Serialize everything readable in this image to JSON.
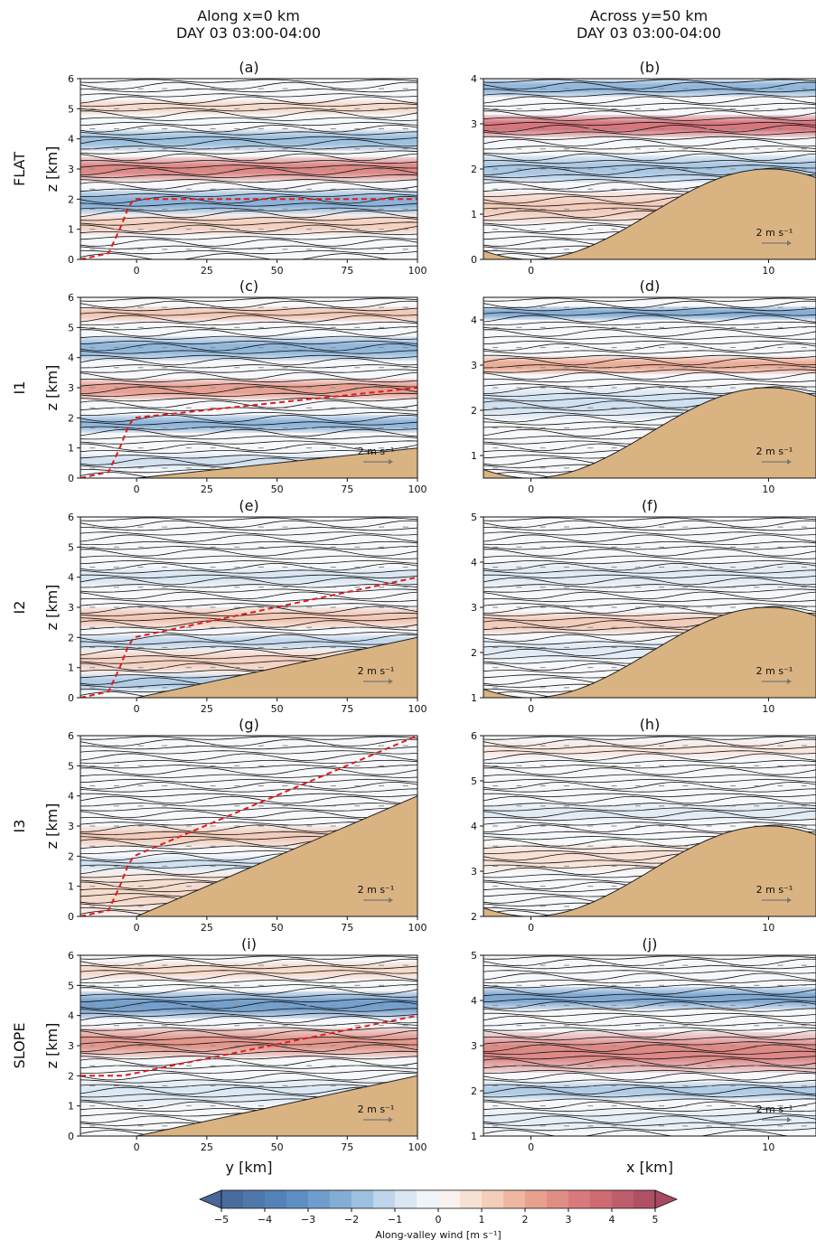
{
  "figure": {
    "column_titles": [
      {
        "line1": "Along x=0 km",
        "line2": "DAY 03 03:00-04:00"
      },
      {
        "line1": "Across y=50 km",
        "line2": "DAY 03 03:00-04:00"
      }
    ],
    "row_labels": [
      "FLAT",
      "I1",
      "I2",
      "I3",
      "SLOPE"
    ],
    "scale_arrow_label": "2 m s⁻¹",
    "colors": {
      "terrain": "#d9b382",
      "dashed_line": "#e31a1c",
      "contour": "#111111",
      "positive_wind": "#b2182b",
      "negative_wind": "#2166ac"
    },
    "colorbar": {
      "label": "Along-valley wind [m s⁻¹]",
      "ticks": [
        "−5",
        "−4",
        "−3",
        "−2",
        "−1",
        "0",
        "1",
        "2",
        "3",
        "4",
        "5"
      ],
      "range": [
        -5,
        5
      ],
      "levels": 20
    }
  },
  "chart_data": [
    {
      "type": "heatmap",
      "panel": "(a)",
      "row": "FLAT",
      "column": "Along x=0 km",
      "ylabel": "z [km]",
      "xlabel": "",
      "xlim": [
        -20,
        100
      ],
      "ylim": [
        0,
        6
      ],
      "xticks": [
        0,
        25,
        50,
        75,
        100
      ],
      "yticks": [
        0,
        1,
        2,
        3,
        4,
        5,
        6
      ],
      "terrain": {
        "x": [
          -20,
          100
        ],
        "z": [
          0,
          0
        ]
      },
      "dashed_line": {
        "x": [
          -20,
          -10,
          -6,
          -3,
          -1,
          100
        ],
        "z": [
          0,
          0.2,
          1.0,
          1.7,
          2.0,
          2.0
        ]
      },
      "wind_bands": [
        {
          "zmin": 1.5,
          "zmax": 2.3,
          "value": -2.2
        },
        {
          "zmin": 0.8,
          "zmax": 1.5,
          "value": 1.2
        },
        {
          "zmin": 2.6,
          "zmax": 3.4,
          "value": 3.0
        },
        {
          "zmin": 3.6,
          "zmax": 4.3,
          "value": -1.8
        },
        {
          "zmin": 4.8,
          "zmax": 5.3,
          "value": 1.0
        }
      ],
      "scale_arrow": false
    },
    {
      "type": "heatmap",
      "panel": "(b)",
      "row": "FLAT",
      "column": "Across y=50 km",
      "ylabel": "",
      "xlabel": "",
      "xlim": [
        -2,
        12
      ],
      "ylim": [
        0,
        4
      ],
      "xticks": [
        0,
        10
      ],
      "yticks": [
        0,
        1,
        2,
        3,
        4
      ],
      "terrain": {
        "valley_floor": 0,
        "ridge_top": 2,
        "valley_x": 0,
        "ridge_x": 10
      },
      "wind_bands": [
        {
          "zmin": 2.7,
          "zmax": 3.2,
          "value": 3.5
        },
        {
          "zmin": 3.6,
          "zmax": 4.0,
          "value": -2.0
        },
        {
          "zmin": 1.7,
          "zmax": 2.3,
          "value": -1.6
        },
        {
          "zmin": 0.8,
          "zmax": 1.5,
          "value": 1.3
        }
      ],
      "scale_arrow": true
    },
    {
      "type": "heatmap",
      "panel": "(c)",
      "row": "I1",
      "column": "Along x=0 km",
      "ylabel": "z [km]",
      "xlabel": "",
      "xlim": [
        -20,
        100
      ],
      "ylim": [
        0,
        6
      ],
      "xticks": [
        0,
        25,
        50,
        75,
        100
      ],
      "yticks": [
        0,
        1,
        2,
        3,
        4,
        5,
        6
      ],
      "terrain": {
        "x": [
          -20,
          0,
          100
        ],
        "z": [
          0,
          0,
          1
        ]
      },
      "dashed_line": {
        "x": [
          -20,
          -10,
          -6,
          -3,
          -1,
          100
        ],
        "z": [
          0,
          0.2,
          1.0,
          1.7,
          2.0,
          3.0
        ]
      },
      "wind_bands": [
        {
          "zmin": 1.5,
          "zmax": 2.1,
          "value": -2.0
        },
        {
          "zmin": 2.6,
          "zmax": 3.3,
          "value": 2.4
        },
        {
          "zmin": 3.9,
          "zmax": 4.7,
          "value": -2.0
        },
        {
          "zmin": 5.2,
          "zmax": 5.7,
          "value": 1.4
        },
        {
          "zmin": 0.3,
          "zmax": 0.8,
          "value": -1.0
        }
      ],
      "scale_arrow": true
    },
    {
      "type": "heatmap",
      "panel": "(d)",
      "row": "I1",
      "column": "Across y=50 km",
      "ylabel": "",
      "xlabel": "",
      "xlim": [
        -2,
        12
      ],
      "ylim": [
        0.5,
        4.5
      ],
      "xticks": [
        0,
        10
      ],
      "yticks": [
        1,
        2,
        3,
        4
      ],
      "terrain": {
        "valley_floor": 0.5,
        "ridge_top": 2.5,
        "valley_x": 0,
        "ridge_x": 10
      },
      "wind_bands": [
        {
          "zmin": 2.8,
          "zmax": 3.2,
          "value": 2.0
        },
        {
          "zmin": 4.0,
          "zmax": 4.3,
          "value": -2.3
        },
        {
          "zmin": 1.8,
          "zmax": 2.5,
          "value": -1.0
        }
      ],
      "scale_arrow": true
    },
    {
      "type": "heatmap",
      "panel": "(e)",
      "row": "I2",
      "column": "Along x=0 km",
      "ylabel": "z [km]",
      "xlabel": "",
      "xlim": [
        -20,
        100
      ],
      "ylim": [
        0,
        6
      ],
      "xticks": [
        0,
        25,
        50,
        75,
        100
      ],
      "yticks": [
        0,
        1,
        2,
        3,
        4,
        5,
        6
      ],
      "terrain": {
        "x": [
          -20,
          0,
          100
        ],
        "z": [
          0,
          0,
          2
        ]
      },
      "dashed_line": {
        "x": [
          -20,
          -10,
          -6,
          -3,
          -1,
          100
        ],
        "z": [
          0,
          0.2,
          1.0,
          1.7,
          2.0,
          4.0
        ]
      },
      "wind_bands": [
        {
          "zmin": 0.8,
          "zmax": 1.6,
          "value": 1.2
        },
        {
          "zmin": 1.6,
          "zmax": 2.1,
          "value": -1.2
        },
        {
          "zmin": 2.3,
          "zmax": 3.0,
          "value": 1.4
        },
        {
          "zmin": 3.7,
          "zmax": 4.3,
          "value": -0.8
        },
        {
          "zmin": 0.2,
          "zmax": 0.8,
          "value": -1.5
        }
      ],
      "scale_arrow": true
    },
    {
      "type": "heatmap",
      "panel": "(f)",
      "row": "I2",
      "column": "Across y=50 km",
      "ylabel": "",
      "xlabel": "",
      "xlim": [
        -2,
        12
      ],
      "ylim": [
        1,
        5
      ],
      "xticks": [
        0,
        10
      ],
      "yticks": [
        1,
        2,
        3,
        4,
        5
      ],
      "terrain": {
        "valley_floor": 1,
        "ridge_top": 3,
        "valley_x": 0,
        "ridge_x": 10
      },
      "wind_bands": [
        {
          "zmin": 2.4,
          "zmax": 2.9,
          "value": 1.3
        },
        {
          "zmin": 1.8,
          "zmax": 2.3,
          "value": -0.6
        },
        {
          "zmin": 3.4,
          "zmax": 4.0,
          "value": -0.6
        }
      ],
      "scale_arrow": true
    },
    {
      "type": "heatmap",
      "panel": "(g)",
      "row": "I3",
      "column": "Along x=0 km",
      "ylabel": "z [km]",
      "xlabel": "",
      "xlim": [
        -20,
        100
      ],
      "ylim": [
        0,
        6
      ],
      "xticks": [
        0,
        25,
        50,
        75,
        100
      ],
      "yticks": [
        0,
        1,
        2,
        3,
        4,
        5,
        6
      ],
      "terrain": {
        "x": [
          -20,
          0,
          100
        ],
        "z": [
          0,
          0,
          4
        ]
      },
      "dashed_line": {
        "x": [
          -20,
          -10,
          -6,
          -3,
          -1,
          100
        ],
        "z": [
          0,
          0.2,
          1.0,
          1.7,
          2.0,
          6.0
        ]
      },
      "wind_bands": [
        {
          "zmin": 0.0,
          "zmax": 1.5,
          "value": 1.0
        },
        {
          "zmin": 2.3,
          "zmax": 3.0,
          "value": 1.3
        },
        {
          "zmin": 1.5,
          "zmax": 2.0,
          "value": -1.0
        }
      ],
      "scale_arrow": true
    },
    {
      "type": "heatmap",
      "panel": "(h)",
      "row": "I3",
      "column": "Across y=50 km",
      "ylabel": "",
      "xlabel": "",
      "xlim": [
        -2,
        12
      ],
      "ylim": [
        2,
        6
      ],
      "xticks": [
        0,
        10
      ],
      "yticks": [
        2,
        3,
        4,
        5,
        6
      ],
      "terrain": {
        "valley_floor": 2,
        "ridge_top": 4,
        "valley_x": 0,
        "ridge_x": 10
      },
      "wind_bands": [
        {
          "zmin": 3.0,
          "zmax": 3.6,
          "value": 0.8
        },
        {
          "zmin": 4.1,
          "zmax": 4.5,
          "value": -0.6
        },
        {
          "zmin": 5.5,
          "zmax": 5.9,
          "value": 0.6
        }
      ],
      "scale_arrow": true
    },
    {
      "type": "heatmap",
      "panel": "(i)",
      "row": "SLOPE",
      "column": "Along x=0 km",
      "ylabel": "z [km]",
      "xlabel": "y [km]",
      "xlim": [
        -20,
        100
      ],
      "ylim": [
        0,
        6
      ],
      "xticks": [
        0,
        25,
        50,
        75,
        100
      ],
      "yticks": [
        0,
        1,
        2,
        3,
        4,
        5,
        6
      ],
      "terrain": {
        "x": [
          -20,
          0,
          100
        ],
        "z": [
          0,
          0,
          2
        ]
      },
      "dashed_line": {
        "x": [
          -20,
          -5,
          100
        ],
        "z": [
          2.0,
          2.0,
          4.0
        ]
      },
      "wind_bands": [
        {
          "zmin": 3.9,
          "zmax": 4.8,
          "value": -2.8
        },
        {
          "zmin": 2.6,
          "zmax": 3.6,
          "value": 2.6
        },
        {
          "zmin": 1.0,
          "zmax": 1.9,
          "value": -0.7
        },
        {
          "zmin": 5.2,
          "zmax": 5.8,
          "value": 1.0
        }
      ],
      "scale_arrow": true
    },
    {
      "type": "heatmap",
      "panel": "(j)",
      "row": "SLOPE",
      "column": "Across y=50 km",
      "ylabel": "",
      "xlabel": "x [km]",
      "xlim": [
        -2,
        12
      ],
      "ylim": [
        1,
        5
      ],
      "xticks": [
        0,
        10
      ],
      "yticks": [
        1,
        2,
        3,
        4,
        5
      ],
      "terrain": {
        "valley_floor": 1,
        "ridge_top": 1,
        "valley_x": 0,
        "ridge_x": 10
      },
      "wind_bands": [
        {
          "zmin": 3.8,
          "zmax": 4.3,
          "value": -2.5
        },
        {
          "zmin": 2.4,
          "zmax": 3.3,
          "value": 3.0
        },
        {
          "zmin": 1.8,
          "zmax": 2.2,
          "value": -1.5
        },
        {
          "zmin": 1.1,
          "zmax": 1.6,
          "value": -0.5
        }
      ],
      "scale_arrow": true
    }
  ]
}
